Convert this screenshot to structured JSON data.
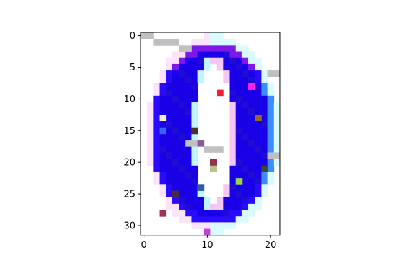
{
  "image": {
    "rows": 32,
    "cols": 22,
    "background": "#ffffff",
    "palette": {
      "blue": "#1a00e6",
      "dark_blue": "#1f0dd6",
      "ring_blue": "#2a0bff",
      "light_cyan": "#bff5ff",
      "pale_cyan": "#d9fbff",
      "pink": "#f5c6f2",
      "light_pink": "#fbe3fb",
      "violet": "#7d18e8",
      "purple": "#5c10d8",
      "mid_blue": "#2b5bff",
      "azure": "#3a8cff",
      "gray": "#c2c2c2"
    },
    "accent_pixels": [
      {
        "r": 0,
        "c": 0,
        "color": "#c0c0c0"
      },
      {
        "r": 0,
        "c": 1,
        "color": "#c0c0c0"
      },
      {
        "r": 1,
        "c": 2,
        "color": "#c0c0c0"
      },
      {
        "r": 1,
        "c": 3,
        "color": "#c0c0c0"
      },
      {
        "r": 1,
        "c": 4,
        "color": "#c0c0c0"
      },
      {
        "r": 1,
        "c": 5,
        "color": "#c0c0c0"
      },
      {
        "r": 2,
        "c": 6,
        "color": "#c0c0c0"
      },
      {
        "r": 2,
        "c": 7,
        "color": "#c0c0c0"
      },
      {
        "r": 6,
        "c": 20,
        "color": "#c0c0c0"
      },
      {
        "r": 6,
        "c": 21,
        "color": "#c0c0c0"
      },
      {
        "r": 8,
        "c": 17,
        "color": "#ff1ee6"
      },
      {
        "r": 9,
        "c": 12,
        "color": "#ee2233"
      },
      {
        "r": 13,
        "c": 3,
        "color": "#f2f0d0"
      },
      {
        "r": 13,
        "c": 18,
        "color": "#9a6a1e"
      },
      {
        "r": 15,
        "c": 3,
        "color": "#3a63f0"
      },
      {
        "r": 15,
        "c": 8,
        "color": "#4a3326"
      },
      {
        "r": 17,
        "c": 7,
        "color": "#c0c0c0"
      },
      {
        "r": 17,
        "c": 8,
        "color": "#c0c0c0"
      },
      {
        "r": 17,
        "c": 9,
        "color": "#8a5a9a"
      },
      {
        "r": 18,
        "c": 10,
        "color": "#c0c0c0"
      },
      {
        "r": 18,
        "c": 11,
        "color": "#c0c0c0"
      },
      {
        "r": 18,
        "c": 12,
        "color": "#c0c0c0"
      },
      {
        "r": 19,
        "c": 20,
        "color": "#c0c0c0"
      },
      {
        "r": 19,
        "c": 21,
        "color": "#c0c0c0"
      },
      {
        "r": 20,
        "c": 11,
        "color": "#9a3050"
      },
      {
        "r": 21,
        "c": 11,
        "color": "#b8c48a"
      },
      {
        "r": 21,
        "c": 19,
        "color": "#3a4a2a"
      },
      {
        "r": 23,
        "c": 15,
        "color": "#9ad648"
      },
      {
        "r": 24,
        "c": 9,
        "color": "#2f5aa8"
      },
      {
        "r": 25,
        "c": 5,
        "color": "#4a2a4a"
      },
      {
        "r": 28,
        "c": 3,
        "color": "#a0305a"
      },
      {
        "r": 31,
        "c": 10,
        "color": "#c040d8"
      }
    ]
  },
  "axes": {
    "x_ticks": [
      "0",
      "10",
      "20"
    ],
    "x_tick_values": [
      0,
      10,
      20
    ],
    "y_ticks": [
      "0",
      "5",
      "10",
      "15",
      "20",
      "25",
      "30"
    ],
    "y_tick_values": [
      0,
      5,
      10,
      15,
      20,
      25,
      30
    ],
    "xlim": [
      -0.5,
      21.5
    ],
    "ylim": [
      31.5,
      -0.5
    ]
  }
}
